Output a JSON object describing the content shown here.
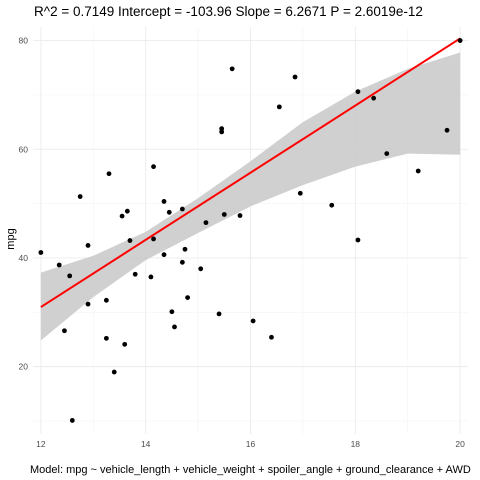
{
  "chart_data": {
    "type": "scatter",
    "title": "R^2 =  0.7149 Intercept = -103.96  Slope = 6.2671  P = 2.6019e-12",
    "caption": "Model:  mpg ~ vehicle_length + vehicle_weight + spoiler_angle + ground_clearance + AWD",
    "xlabel": "",
    "ylabel": "mpg",
    "xlim": [
      11.85,
      20.15
    ],
    "ylim": [
      7.6,
      82.5
    ],
    "x_ticks": [
      12,
      14,
      16,
      18,
      20
    ],
    "y_ticks": [
      20,
      40,
      60,
      80
    ],
    "grid": true,
    "fit": {
      "intercept": -43.2,
      "slope": 6.18,
      "x_range": [
        12,
        20
      ],
      "band": [
        {
          "x": 12,
          "lo": 24.8,
          "hi": 37.3
        },
        {
          "x": 13,
          "lo": 32.8,
          "hi": 40.4
        },
        {
          "x": 14,
          "lo": 39.6,
          "hi": 44.8
        },
        {
          "x": 15,
          "lo": 44.6,
          "hi": 51.0
        },
        {
          "x": 16,
          "lo": 49.5,
          "hi": 57.8
        },
        {
          "x": 17,
          "lo": 53.4,
          "hi": 65.0
        },
        {
          "x": 18,
          "lo": 56.8,
          "hi": 70.6
        },
        {
          "x": 19,
          "lo": 59.2,
          "hi": 74.8
        },
        {
          "x": 20,
          "lo": 59.0,
          "hi": 77.8
        }
      ],
      "line_color": "#ff0000",
      "band_color": "#c8c8c8"
    },
    "point_color": "#000000",
    "points": [
      {
        "x": 12.0,
        "y": 41.0
      },
      {
        "x": 12.35,
        "y": 38.7
      },
      {
        "x": 12.45,
        "y": 26.6
      },
      {
        "x": 12.55,
        "y": 36.7
      },
      {
        "x": 12.6,
        "y": 10.1
      },
      {
        "x": 12.75,
        "y": 51.3
      },
      {
        "x": 12.9,
        "y": 42.3
      },
      {
        "x": 12.9,
        "y": 31.5
      },
      {
        "x": 13.25,
        "y": 25.2
      },
      {
        "x": 13.25,
        "y": 32.2
      },
      {
        "x": 13.3,
        "y": 55.5
      },
      {
        "x": 13.4,
        "y": 19.0
      },
      {
        "x": 13.55,
        "y": 47.7
      },
      {
        "x": 13.6,
        "y": 24.1
      },
      {
        "x": 13.65,
        "y": 48.6
      },
      {
        "x": 13.7,
        "y": 43.2
      },
      {
        "x": 13.8,
        "y": 37.0
      },
      {
        "x": 14.1,
        "y": 36.5
      },
      {
        "x": 14.15,
        "y": 43.5
      },
      {
        "x": 14.15,
        "y": 56.8
      },
      {
        "x": 14.35,
        "y": 50.4
      },
      {
        "x": 14.35,
        "y": 40.6
      },
      {
        "x": 14.45,
        "y": 48.4
      },
      {
        "x": 14.5,
        "y": 30.1
      },
      {
        "x": 14.55,
        "y": 27.3
      },
      {
        "x": 14.7,
        "y": 49.0
      },
      {
        "x": 14.7,
        "y": 39.2
      },
      {
        "x": 14.75,
        "y": 41.6
      },
      {
        "x": 14.8,
        "y": 32.7
      },
      {
        "x": 15.05,
        "y": 38.0
      },
      {
        "x": 15.15,
        "y": 46.5
      },
      {
        "x": 15.4,
        "y": 29.7
      },
      {
        "x": 15.45,
        "y": 63.2
      },
      {
        "x": 15.45,
        "y": 63.8
      },
      {
        "x": 15.5,
        "y": 48.0
      },
      {
        "x": 15.65,
        "y": 74.8
      },
      {
        "x": 15.8,
        "y": 47.8
      },
      {
        "x": 16.05,
        "y": 28.4
      },
      {
        "x": 16.4,
        "y": 25.4
      },
      {
        "x": 16.55,
        "y": 67.8
      },
      {
        "x": 16.85,
        "y": 73.3
      },
      {
        "x": 16.95,
        "y": 51.9
      },
      {
        "x": 17.55,
        "y": 49.7
      },
      {
        "x": 18.05,
        "y": 70.6
      },
      {
        "x": 18.05,
        "y": 43.3
      },
      {
        "x": 18.35,
        "y": 69.4
      },
      {
        "x": 18.6,
        "y": 59.2
      },
      {
        "x": 19.2,
        "y": 56.0
      },
      {
        "x": 19.75,
        "y": 63.5
      },
      {
        "x": 20.0,
        "y": 80.0
      }
    ]
  }
}
